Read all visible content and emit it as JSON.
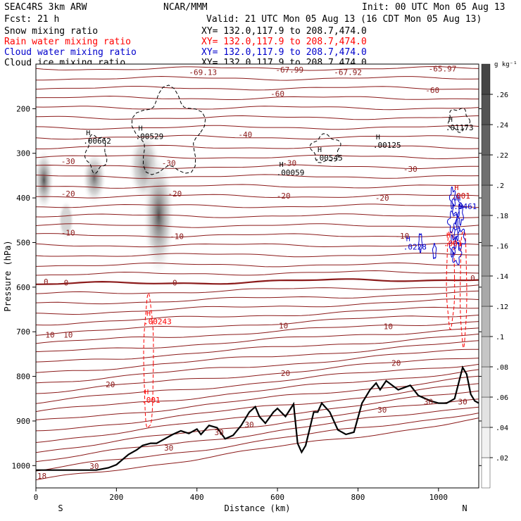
{
  "header": {
    "model": "SEAC4RS   3km ARW",
    "center": "NCAR/MMM",
    "init": "Init: 00 UTC Mon 05 Aug 13",
    "fcst": "Fcst:   21 h",
    "valid": "Valid: 21 UTC Mon 05 Aug 13 (16 CDT Mon 05 Aug 13)",
    "fields": [
      {
        "label": "Snow mixing ratio",
        "xy": "XY= 132.0,117.9 to 208.7,474.0",
        "color": "#000000"
      },
      {
        "label": "Rain water mixing ratio",
        "xy": "XY= 132.0,117.9 to 208.7,474.0",
        "color": "#ff0000"
      },
      {
        "label": "Cloud water mixing ratio",
        "xy": "XY= 132.0,117.9 to 208.7,474.0",
        "color": "#0000cc"
      },
      {
        "label": "Cloud ice mixing ratio",
        "xy": "XY= 132.0,117.9 to 208.7,474.0",
        "color": "#000000"
      }
    ]
  },
  "chart_data": {
    "type": "cross-section",
    "xlabel": "Distance (km)",
    "ylabel": "Pressure (hPa)",
    "xlim": [
      0,
      1100
    ],
    "ylim": [
      1050,
      100
    ],
    "x_ticks": [
      0,
      200,
      400,
      600,
      800,
      1000
    ],
    "y_ticks": [
      200,
      300,
      400,
      500,
      600,
      700,
      800,
      900,
      1000
    ],
    "x_end_labels": {
      "left": "S",
      "right": "N"
    },
    "colorbar": {
      "unit": "g kg⁻¹",
      "ticks": [
        ".02",
        ".04",
        ".06",
        ".08",
        ".1",
        ".12",
        ".14",
        ".16",
        ".18",
        ".2",
        ".22",
        ".24",
        ".26"
      ],
      "min": 0.0,
      "max": 0.28
    },
    "isotherm_color": "#8b1a1a",
    "rain_color": "#ff0000",
    "cloud_water_color": "#0000cc",
    "terrain": [
      [
        0,
        1010
      ],
      [
        100,
        1010
      ],
      [
        150,
        1010
      ],
      [
        180,
        1005
      ],
      [
        200,
        998
      ],
      [
        230,
        975
      ],
      [
        250,
        965
      ],
      [
        265,
        955
      ],
      [
        285,
        950
      ],
      [
        300,
        950
      ],
      [
        320,
        940
      ],
      [
        340,
        930
      ],
      [
        360,
        922
      ],
      [
        380,
        928
      ],
      [
        400,
        918
      ],
      [
        410,
        930
      ],
      [
        430,
        910
      ],
      [
        450,
        915
      ],
      [
        470,
        940
      ],
      [
        490,
        932
      ],
      [
        510,
        910
      ],
      [
        530,
        880
      ],
      [
        545,
        868
      ],
      [
        555,
        890
      ],
      [
        570,
        905
      ],
      [
        590,
        880
      ],
      [
        600,
        872
      ],
      [
        620,
        890
      ],
      [
        640,
        862
      ],
      [
        650,
        950
      ],
      [
        660,
        970
      ],
      [
        670,
        955
      ],
      [
        690,
        880
      ],
      [
        700,
        880
      ],
      [
        710,
        860
      ],
      [
        730,
        880
      ],
      [
        750,
        920
      ],
      [
        770,
        930
      ],
      [
        790,
        925
      ],
      [
        810,
        860
      ],
      [
        830,
        830
      ],
      [
        845,
        815
      ],
      [
        855,
        830
      ],
      [
        870,
        810
      ],
      [
        900,
        830
      ],
      [
        930,
        820
      ],
      [
        950,
        843
      ],
      [
        980,
        855
      ],
      [
        1000,
        860
      ],
      [
        1020,
        860
      ],
      [
        1040,
        850
      ],
      [
        1060,
        780
      ],
      [
        1070,
        795
      ],
      [
        1080,
        840
      ],
      [
        1090,
        855
      ],
      [
        1100,
        860
      ]
    ],
    "isotherm_labels": [
      {
        "text": "-69.13",
        "x": 415,
        "p": 118
      },
      {
        "text": "-67.99",
        "x": 630,
        "p": 113
      },
      {
        "text": "-67.92",
        "x": 775,
        "p": 118
      },
      {
        "text": "-65.97",
        "x": 1010,
        "p": 110
      },
      {
        "text": "-60",
        "x": 600,
        "p": 166
      },
      {
        "text": "-60",
        "x": 985,
        "p": 158
      },
      {
        "text": "-40",
        "x": 520,
        "p": 258
      },
      {
        "text": "-30",
        "x": 80,
        "p": 318
      },
      {
        "text": "-30",
        "x": 330,
        "p": 322
      },
      {
        "text": "-30",
        "x": 630,
        "p": 322
      },
      {
        "text": "-30",
        "x": 930,
        "p": 335
      },
      {
        "text": "-20",
        "x": 80,
        "p": 390
      },
      {
        "text": "-20",
        "x": 345,
        "p": 390
      },
      {
        "text": "-20",
        "x": 615,
        "p": 395
      },
      {
        "text": "-20",
        "x": 860,
        "p": 400
      },
      {
        "text": "-10",
        "x": 80,
        "p": 478
      },
      {
        "text": "-10",
        "x": 350,
        "p": 486
      },
      {
        "text": "-10",
        "x": 910,
        "p": 485
      },
      {
        "text": "0",
        "x": 25,
        "p": 588
      },
      {
        "text": "0",
        "x": 75,
        "p": 590
      },
      {
        "text": "0",
        "x": 345,
        "p": 590
      },
      {
        "text": "0",
        "x": 1085,
        "p": 580
      },
      {
        "text": "10",
        "x": 35,
        "p": 707
      },
      {
        "text": "10",
        "x": 80,
        "p": 707
      },
      {
        "text": "10",
        "x": 615,
        "p": 686
      },
      {
        "text": "10",
        "x": 875,
        "p": 688
      },
      {
        "text": "20",
        "x": 185,
        "p": 818
      },
      {
        "text": "20",
        "x": 620,
        "p": 793
      },
      {
        "text": "20",
        "x": 895,
        "p": 770
      },
      {
        "text": "30",
        "x": 530,
        "p": 908
      },
      {
        "text": "30",
        "x": 330,
        "p": 960
      },
      {
        "text": "30",
        "x": 455,
        "p": 925
      },
      {
        "text": "30",
        "x": 860,
        "p": 875
      },
      {
        "text": "30",
        "x": 975,
        "p": 857
      },
      {
        "text": "30",
        "x": 1060,
        "p": 857
      },
      {
        "text": "18",
        "x": 15,
        "p": 1023
      },
      {
        "text": "30",
        "x": 145,
        "p": 1001
      }
    ],
    "max_markers": [
      {
        "text": ".00662",
        "color": "#000000",
        "x": 135,
        "p": 275
      },
      {
        "text": ".00529",
        "color": "#000000",
        "x": 265,
        "p": 265
      },
      {
        "text": ".01173",
        "color": "#000000",
        "x": 1035,
        "p": 245
      },
      {
        "text": ".00125",
        "color": "#000000",
        "x": 855,
        "p": 285
      },
      {
        "text": ".00545",
        "color": "#000000",
        "x": 710,
        "p": 313
      },
      {
        "text": ".00059",
        "color": "#000000",
        "x": 615,
        "p": 346
      },
      {
        "text": ".00243",
        "color": "#ff0000",
        "x": 285,
        "p": 680
      },
      {
        "text": ".001",
        "color": "#ff0000",
        "x": 280,
        "p": 856
      },
      {
        "text": ".0228",
        "color": "#0000cc",
        "x": 930,
        "p": 513
      },
      {
        "text": ".001",
        "color": "#ff0000",
        "x": 1030,
        "p": 505
      },
      {
        "text": ".8461",
        "color": "#0000cc",
        "x": 1055,
        "p": 422
      },
      {
        "text": ".001",
        "color": "#cc0000",
        "x": 1050,
        "p": 398
      }
    ],
    "snow_cores": [
      {
        "x": 20,
        "p": 360,
        "rx": 25,
        "rp": 70,
        "max": 0.24
      },
      {
        "x": 145,
        "p": 355,
        "rx": 30,
        "rp": 60,
        "max": 0.2
      },
      {
        "x": 270,
        "p": 330,
        "rx": 40,
        "rp": 80,
        "max": 0.16
      },
      {
        "x": 305,
        "p": 440,
        "rx": 40,
        "rp": 140,
        "max": 0.24
      },
      {
        "x": 75,
        "p": 450,
        "rx": 20,
        "rp": 45,
        "max": 0.06
      }
    ]
  }
}
